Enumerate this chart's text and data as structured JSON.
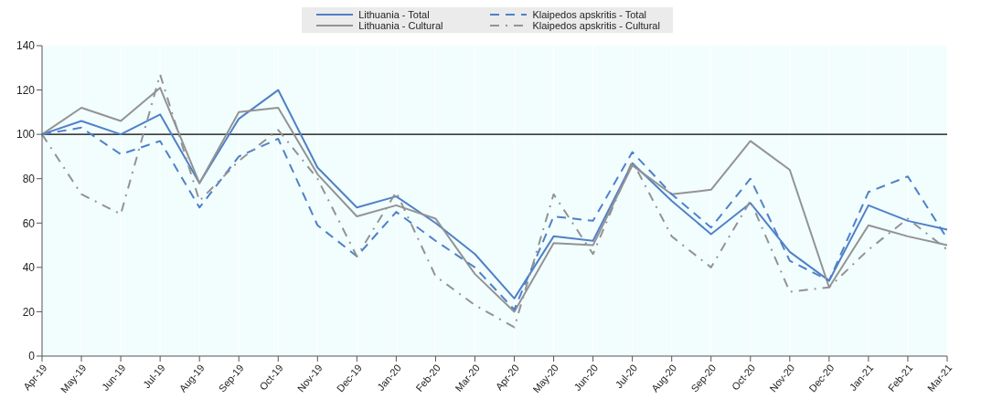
{
  "chart_data": {
    "type": "line",
    "categories": [
      "Apr-19",
      "May-19",
      "Jun-19",
      "Jul-19",
      "Aug-19",
      "Sep-19",
      "Oct-19",
      "Nov-19",
      "Dec-19",
      "Jan-20",
      "Feb-20",
      "Mar-20",
      "Apr-20",
      "May-20",
      "Jun-20",
      "Jul-20",
      "Aug-20",
      "Sep-20",
      "Oct-20",
      "Nov-20",
      "Dec-20",
      "Jan-21",
      "Feb-21",
      "Mar-21"
    ],
    "series": [
      {
        "name": "Lithuania - Total",
        "color": "#4f81c7",
        "line_style": "solid",
        "values": [
          100,
          106,
          100,
          109,
          78,
          107,
          120,
          85,
          67,
          72,
          60,
          46,
          26,
          54,
          52,
          87,
          70,
          55,
          69,
          47,
          34,
          68,
          61,
          57
        ]
      },
      {
        "name": "Lithuania - Cultural",
        "color": "#939393",
        "line_style": "solid",
        "values": [
          100,
          112,
          106,
          121,
          78,
          110,
          112,
          82,
          63,
          68,
          62,
          37,
          20,
          51,
          50,
          86,
          73,
          75,
          97,
          84,
          31,
          59,
          54,
          50
        ]
      },
      {
        "name": "Klaipedos apskritis - Total",
        "color": "#4f81c7",
        "line_style": "dashed",
        "values": [
          100,
          103,
          91,
          97,
          67,
          90,
          98,
          59,
          45,
          65,
          52,
          40,
          21,
          63,
          61,
          92,
          73,
          58,
          80,
          43,
          34,
          74,
          81,
          53
        ]
      },
      {
        "name": "Klaipedos apskritis - Cultural",
        "color": "#939393",
        "line_style": "dashdot",
        "values": [
          100,
          73,
          64,
          127,
          70,
          88,
          102,
          80,
          45,
          74,
          36,
          23,
          13,
          73,
          46,
          88,
          54,
          40,
          70,
          29,
          31,
          48,
          62,
          48
        ]
      }
    ],
    "ylim": [
      0,
      140
    ],
    "yticks": [
      0,
      20,
      40,
      60,
      80,
      100,
      120,
      140
    ],
    "ref_lines": [
      {
        "axis": "y",
        "value": 100,
        "color": "#000000"
      }
    ],
    "grid": "x",
    "legend": "top",
    "marker": "none"
  }
}
